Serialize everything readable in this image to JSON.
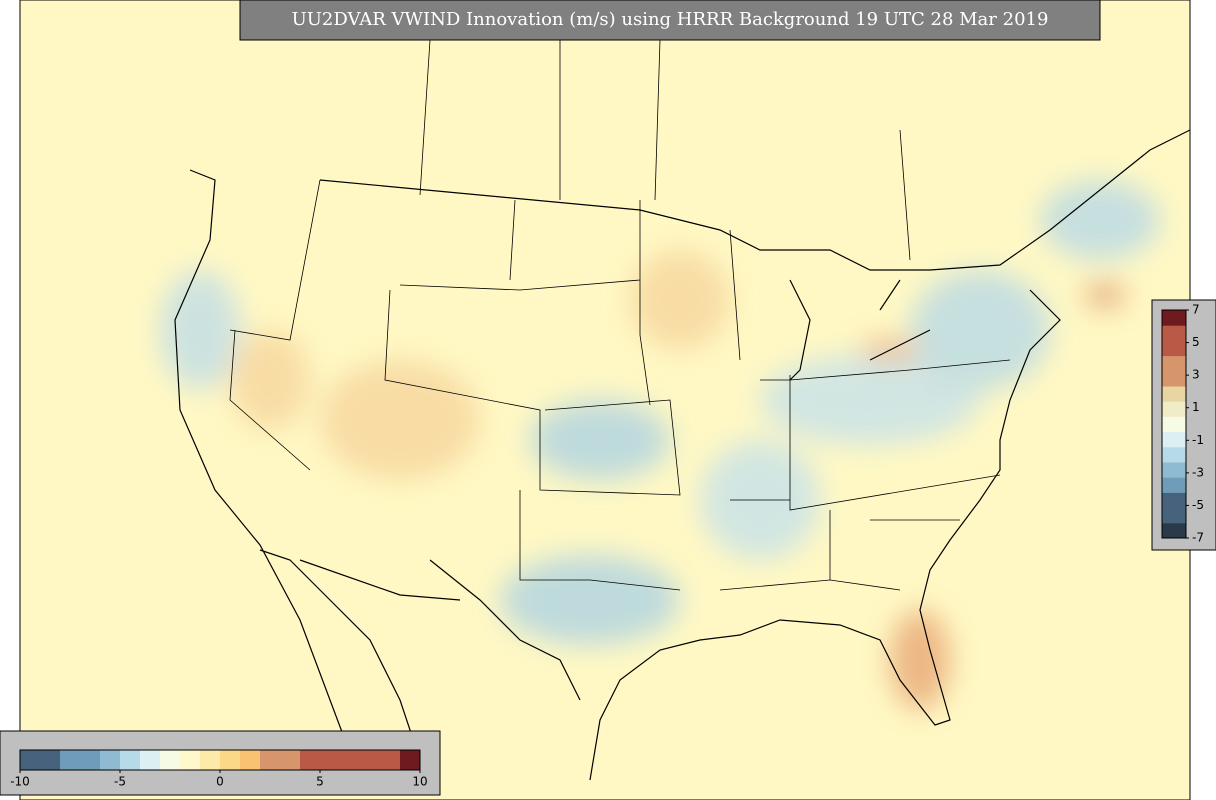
{
  "title": "UU2DVAR VWIND Innovation (m/s) using HRRR Background 19 UTC 28 Mar 2019",
  "colorbar_bottom": {
    "range": [
      -10,
      10
    ],
    "ticks": [
      -10,
      -5,
      0,
      5,
      10
    ],
    "colors": [
      "#46627c",
      "#46627c",
      "#6f9cb8",
      "#6f9cb8",
      "#8fbad2",
      "#b7dae8",
      "#dceff3",
      "#f6fbe6",
      "#fff8cc",
      "#fdeaa8",
      "#fbd788",
      "#f8c271",
      "#d6956a",
      "#d6956a",
      "#b85a45",
      "#b85a45",
      "#b85a45",
      "#b85a45",
      "#b85a45",
      "#6e1a1e"
    ]
  },
  "colorbar_right": {
    "range": [
      -7,
      7
    ],
    "ticks": [
      7,
      5,
      3,
      1,
      -1,
      -3,
      -5,
      -7
    ],
    "colors": [
      "#2a3a48",
      "#46627c",
      "#46627c",
      "#6f9cb8",
      "#8fbad2",
      "#b7dae8",
      "#dceff3",
      "#f6fbe6",
      "#f1ecc8",
      "#e9d5a2",
      "#d6956a",
      "#d6956a",
      "#b85a45",
      "#b85a45",
      "#6e1a1e"
    ]
  }
}
